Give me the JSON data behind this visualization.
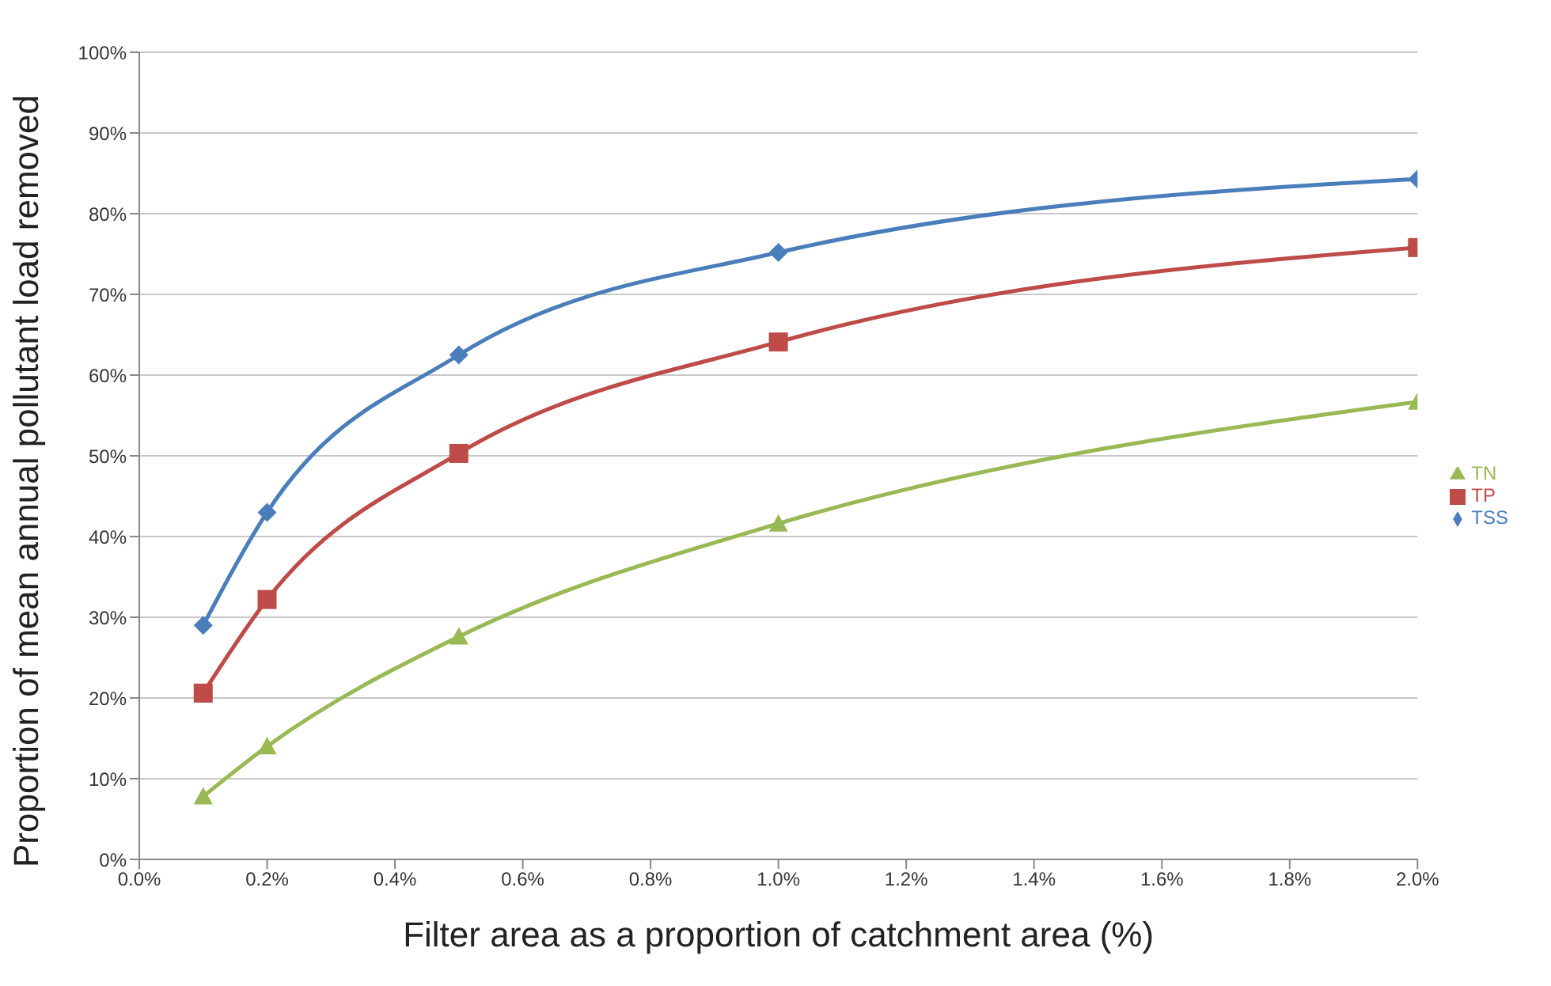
{
  "chart_data": {
    "type": "line",
    "xlabel": "Filter area as a proportion of catchment area (%)",
    "ylabel": "Proportion of mean annual pollutant load removed",
    "x": [
      0.1,
      0.2,
      0.5,
      1.0,
      2.0
    ],
    "series": [
      {
        "name": "TSS",
        "color": "#4a7ebb",
        "marker": "diamond",
        "values": [
          29,
          43,
          62.5,
          75.2,
          84.3
        ]
      },
      {
        "name": "TP",
        "color": "#be4b48",
        "marker": "square",
        "values": [
          20.6,
          32.2,
          50.3,
          64.1,
          75.8
        ]
      },
      {
        "name": "TN",
        "color": "#98b954",
        "marker": "triangle",
        "values": [
          7.8,
          14,
          27.6,
          41.6,
          56.7
        ]
      }
    ],
    "xlim": [
      0,
      2
    ],
    "xticks": [
      {
        "value": 0,
        "label": "0.0%"
      },
      {
        "value": 0.2,
        "label": "0.2%"
      },
      {
        "value": 0.4,
        "label": "0.4%"
      },
      {
        "value": 0.6,
        "label": "0.6%"
      },
      {
        "value": 0.8,
        "label": "0.8%"
      },
      {
        "value": 1.0,
        "label": "1.0%"
      },
      {
        "value": 1.2,
        "label": "1.2%"
      },
      {
        "value": 1.4,
        "label": "1.4%"
      },
      {
        "value": 1.6,
        "label": "1.6%"
      },
      {
        "value": 1.8,
        "label": "1.8%"
      },
      {
        "value": 2.0,
        "label": "2.0%"
      }
    ],
    "ylim": [
      0,
      100
    ],
    "yticks": [
      {
        "value": 0,
        "label": "0%"
      },
      {
        "value": 10,
        "label": "10%"
      },
      {
        "value": 20,
        "label": "20%"
      },
      {
        "value": 30,
        "label": "30%"
      },
      {
        "value": 40,
        "label": "40%"
      },
      {
        "value": 50,
        "label": "50%"
      },
      {
        "value": 60,
        "label": "60%"
      },
      {
        "value": 70,
        "label": "70%"
      },
      {
        "value": 80,
        "label": "80%"
      },
      {
        "value": 90,
        "label": "90%"
      },
      {
        "value": 100,
        "label": "100%"
      }
    ],
    "grid": "y",
    "legend": "right",
    "line_style": "solid"
  }
}
